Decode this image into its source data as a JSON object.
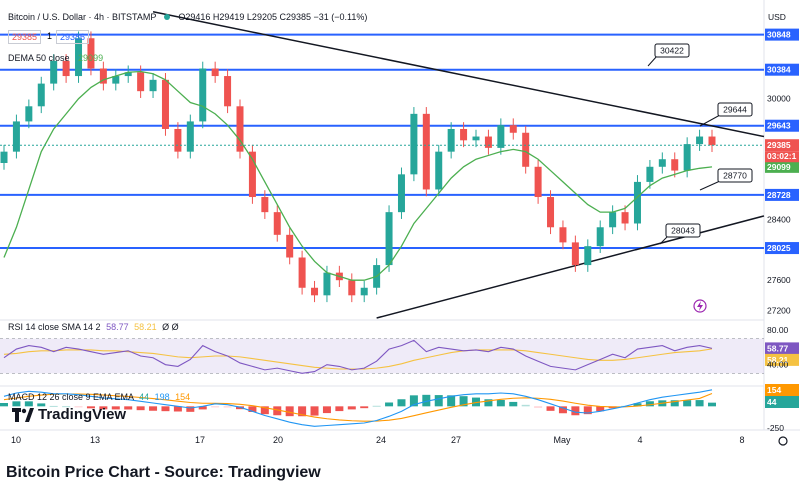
{
  "header": {
    "symbol": "Bitcoin / U.S. Dollar · 4h · BITSTAMP",
    "ohlc": "O29416 H29419 L29205 C29385 −31 (−0.11%)",
    "sell_price": "29385",
    "spread": "1",
    "buy_price": "29386",
    "dema_label": "DEMA 50 close",
    "dema_value": "29099",
    "currency": "USD"
  },
  "rsi_legend": {
    "label": "RSI 14 close SMA 14 2",
    "v1": "58.77",
    "v2": "58.21",
    "extra": "Ø Ø"
  },
  "macd_legend": {
    "label": "MACD 12 26 close 9 EMA EMA",
    "v1": "44",
    "v2": "198",
    "v3": "154"
  },
  "logo": {
    "text": "TradingView"
  },
  "caption": "Bitcoin Price Chart - Source: Tradingview",
  "colors": {
    "up": "#26a69a",
    "down": "#ef5350",
    "level": "#2962ff",
    "dema": "#4caf50",
    "rsi": "#7e57c2",
    "rsi_sma": "#f5c242",
    "macd": "#2196f3",
    "signal": "#ff9800"
  },
  "chart_data": {
    "type": "line",
    "title": "Bitcoin / U.S. Dollar · 4h · BITSTAMP",
    "price_ylim": [
      27100,
      31200
    ],
    "price_ticks": [
      "30848",
      "30384",
      "30000",
      "29643",
      "29385",
      "29099",
      "28728",
      "28400",
      "28025",
      "27600",
      "27200"
    ],
    "x_ticks": [
      "10",
      "13",
      "17",
      "20",
      "24",
      "27",
      "May",
      "4",
      "8"
    ],
    "horizontal_levels": [
      30848,
      30384,
      29643,
      28728,
      28025
    ],
    "level_labels": [
      "30422",
      "29644",
      "28770",
      "28043"
    ],
    "last_price": 29385,
    "countdown": "03:02:1",
    "dema_last": 29099,
    "price_series": [
      29300,
      29700,
      29900,
      30200,
      30500,
      30300,
      30800,
      30400,
      30200,
      30300,
      30350,
      30100,
      30250,
      29600,
      29300,
      29700,
      30400,
      30300,
      29900,
      29300,
      28700,
      28500,
      28200,
      27900,
      27500,
      27400,
      27700,
      27600,
      27400,
      27500,
      27800,
      28500,
      29000,
      29800,
      28800,
      29300,
      29600,
      29450,
      29500,
      29350,
      29650,
      29550,
      29100,
      28700,
      28300,
      28100,
      27800,
      28050,
      28300,
      28500,
      28350,
      28900,
      29100,
      29200,
      29050,
      29400,
      29500,
      29385
    ],
    "dema_series": [
      27900,
      28300,
      28800,
      29300,
      29600,
      29800,
      30000,
      30150,
      30250,
      30300,
      30350,
      30360,
      30330,
      30250,
      30100,
      29950,
      29900,
      29800,
      29650,
      29450,
      29200,
      28900,
      28600,
      28300,
      28050,
      27850,
      27700,
      27650,
      27600,
      27600,
      27650,
      27800,
      28050,
      28350,
      28550,
      28750,
      28950,
      29100,
      29200,
      29250,
      29300,
      29330,
      29300,
      29200,
      29050,
      28900,
      28750,
      28600,
      28500,
      28500,
      28550,
      28700,
      28850,
      28950,
      29000,
      29050,
      29080,
      29099
    ],
    "rsi_series": [
      48,
      58,
      62,
      60,
      55,
      60,
      58,
      55,
      52,
      54,
      56,
      50,
      48,
      40,
      38,
      46,
      62,
      55,
      50,
      42,
      38,
      34,
      36,
      33,
      30,
      32,
      40,
      38,
      34,
      36,
      44,
      58,
      62,
      68,
      55,
      60,
      58,
      56,
      57,
      55,
      60,
      58,
      50,
      44,
      38,
      36,
      34,
      40,
      46,
      52,
      48,
      58,
      60,
      62,
      56,
      60,
      62,
      58.77
    ],
    "rsi_sma_series": [
      52,
      53,
      55,
      56,
      56,
      57,
      57,
      57,
      56,
      56,
      55,
      54,
      53,
      51,
      49,
      48,
      49,
      50,
      50,
      49,
      47,
      45,
      43,
      41,
      39,
      37,
      36,
      35,
      35,
      35,
      36,
      38,
      41,
      45,
      48,
      51,
      54,
      56,
      57,
      57,
      57,
      57,
      56,
      54,
      52,
      50,
      48,
      46,
      45,
      45,
      46,
      48,
      50,
      52,
      54,
      55,
      56,
      58.21
    ],
    "rsi_ylim": [
      20,
      80
    ],
    "macd_series": [
      120,
      160,
      180,
      170,
      150,
      150,
      140,
      120,
      100,
      90,
      80,
      60,
      40,
      20,
      0,
      -20,
      0,
      30,
      20,
      -10,
      -60,
      -110,
      -150,
      -190,
      -220,
      -240,
      -230,
      -220,
      -210,
      -200,
      -170,
      -120,
      -60,
      20,
      60,
      90,
      120,
      140,
      150,
      150,
      160,
      150,
      120,
      80,
      30,
      -20,
      -70,
      -80,
      -60,
      -30,
      0,
      40,
      80,
      110,
      130,
      150,
      170,
      198
    ],
    "signal_series": [
      80,
      100,
      120,
      135,
      145,
      148,
      148,
      144,
      136,
      127,
      118,
      106,
      93,
      78,
      62,
      46,
      37,
      36,
      33,
      24,
      8,
      -16,
      -43,
      -72,
      -101,
      -129,
      -149,
      -163,
      -173,
      -178,
      -177,
      -166,
      -145,
      -112,
      -78,
      -45,
      -12,
      18,
      45,
      65,
      84,
      97,
      102,
      97,
      84,
      63,
      37,
      14,
      -1,
      -7,
      -6,
      3,
      19,
      38,
      57,
      76,
      95,
      154
    ],
    "macd_ylim": [
      -260,
      220
    ],
    "macd_ticks": [
      "154",
      "44",
      "-250"
    ]
  }
}
